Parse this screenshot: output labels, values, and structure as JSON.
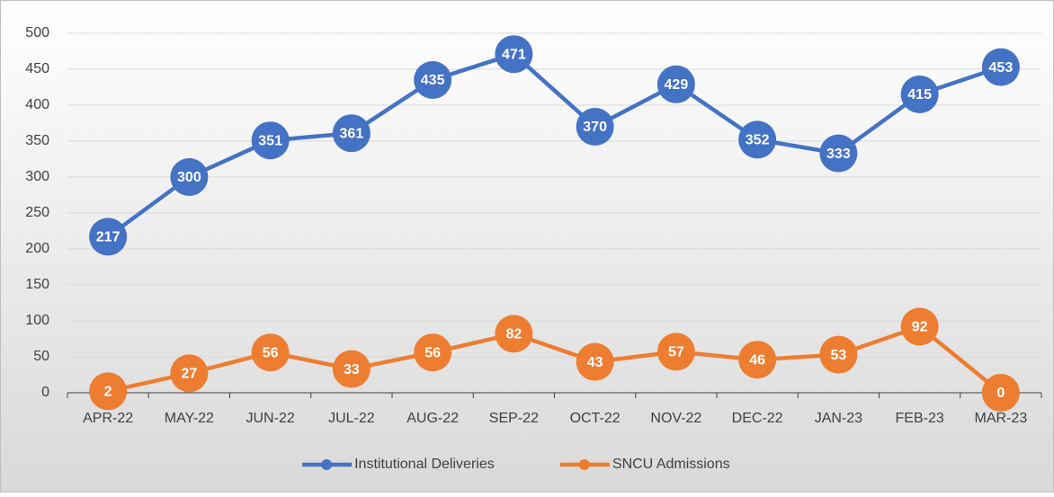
{
  "chart_data": {
    "type": "line",
    "categories": [
      "APR-22",
      "MAY-22",
      "JUN-22",
      "JUL-22",
      "AUG-22",
      "SEP-22",
      "OCT-22",
      "NOV-22",
      "DEC-22",
      "JAN-23",
      "FEB-23",
      "MAR-23"
    ],
    "series": [
      {
        "name": "Institutional Deliveries",
        "color": "#4472c4",
        "values": [
          217,
          300,
          351,
          361,
          435,
          471,
          370,
          429,
          352,
          333,
          415,
          453
        ]
      },
      {
        "name": "SNCU Admissions",
        "color": "#ed7d31",
        "values": [
          2,
          27,
          56,
          33,
          56,
          82,
          43,
          57,
          46,
          53,
          92,
          0
        ]
      }
    ],
    "ylim": [
      0,
      500
    ],
    "yticks": [
      0,
      50,
      100,
      150,
      200,
      250,
      300,
      350,
      400,
      450,
      500
    ],
    "grid": true,
    "legend": "bottom"
  }
}
